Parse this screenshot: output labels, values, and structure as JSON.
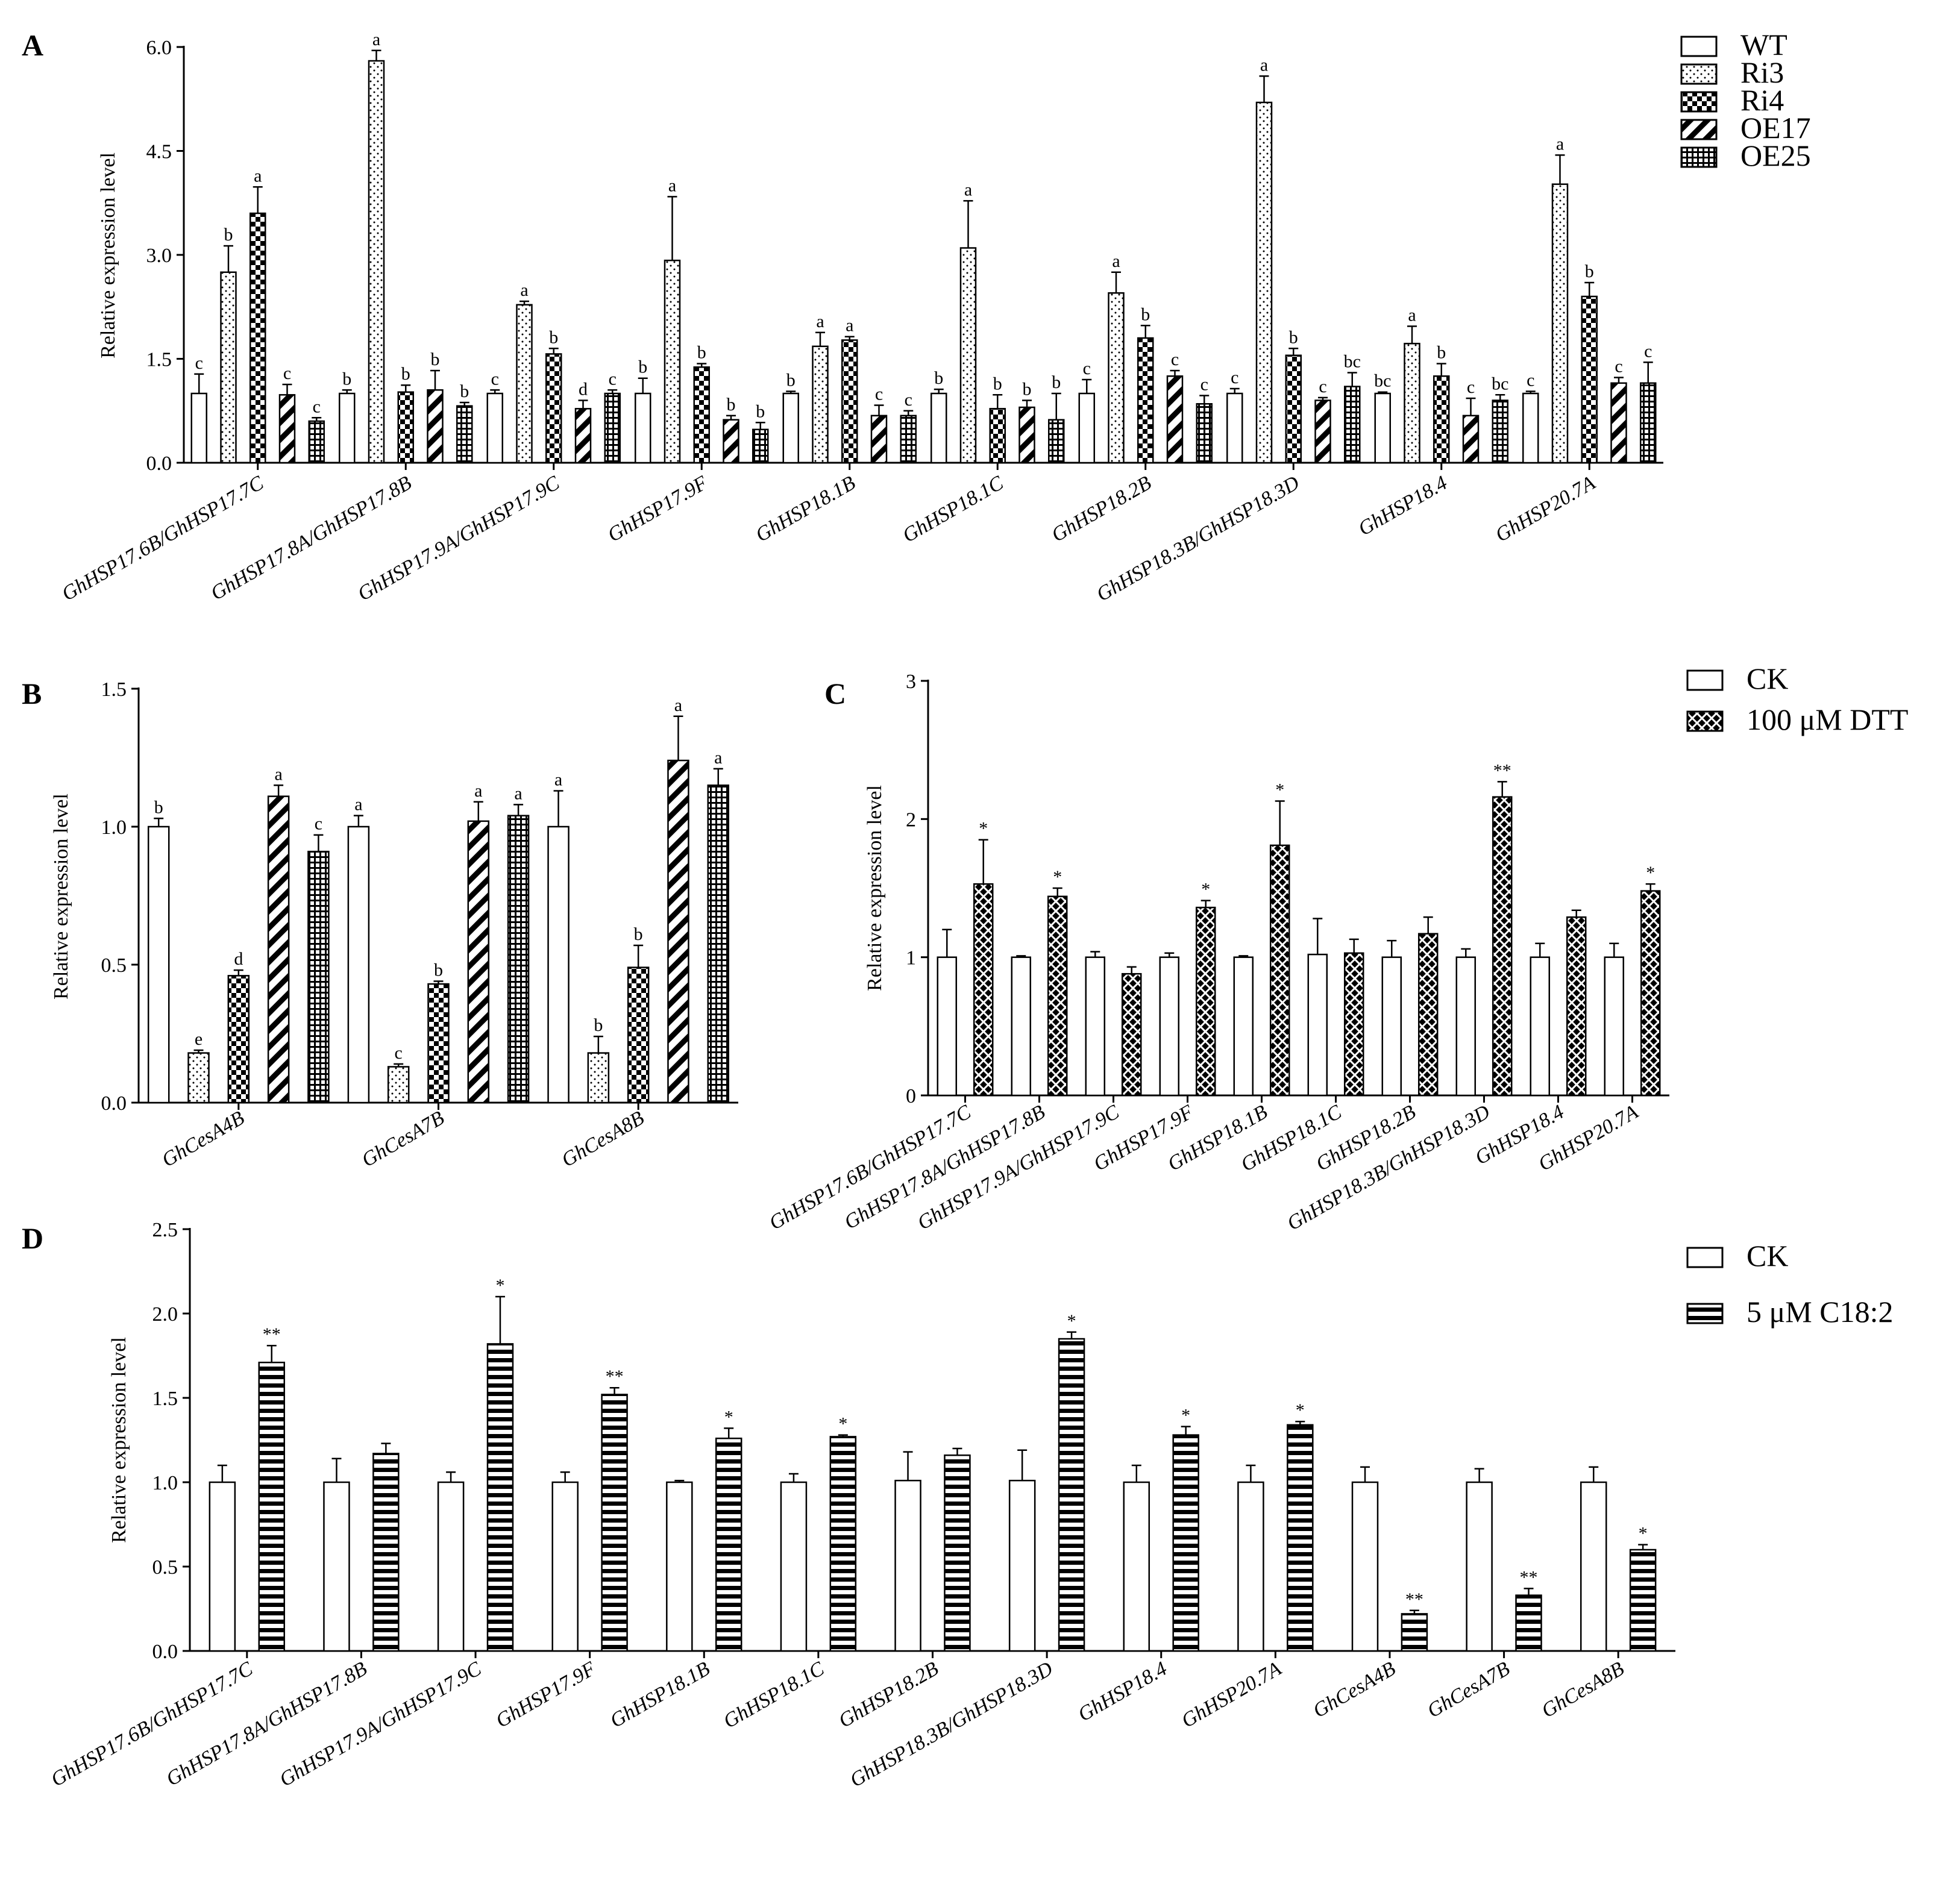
{
  "figure": {
    "panel_labels": [
      "A",
      "B",
      "C",
      "D"
    ],
    "colors": {
      "ink": "#000000",
      "bar_fill": "#ffffff"
    },
    "pattern_names": [
      "open",
      "dotted",
      "checker",
      "diagonal",
      "brick",
      "crosshatch",
      "horizontal-stripes"
    ]
  },
  "chart_data": [
    {
      "panel": "A",
      "type": "bar",
      "title": "",
      "xlabel": "",
      "ylabel": "Relative expression level",
      "ylim": [
        0,
        6.0
      ],
      "yticks": [
        "0.0",
        "1.5",
        "3.0",
        "4.5",
        "6.0"
      ],
      "categories": [
        "GhHSP17.6B/GhHSP17.7C",
        "GhHSP17.8A/GhHSP17.8B",
        "GhHSP17.9A/GhHSP17.9C",
        "GhHSP17.9F",
        "GhHSP18.1B",
        "GhHSP18.1C",
        "GhHSP18.2B",
        "GhHSP18.3B/GhHSP18.3D",
        "GhHSP18.4",
        "GhHSP20.7A"
      ],
      "legend_position": "top-right",
      "series": [
        {
          "name": "WT",
          "pattern": "open",
          "values": [
            1.0,
            1.0,
            1.0,
            1.0,
            1.0,
            1.0,
            1.0,
            1.0,
            1.0,
            1.0
          ],
          "errors": [
            0.28,
            0.05,
            0.05,
            0.22,
            0.03,
            0.06,
            0.2,
            0.07,
            0.02,
            0.03
          ],
          "labels": [
            "c",
            "b",
            "c",
            "b",
            "b",
            "b",
            "c",
            "c",
            "bc",
            "c"
          ]
        },
        {
          "name": "Ri3",
          "pattern": "dotted",
          "values": [
            2.75,
            5.8,
            2.28,
            2.92,
            1.68,
            3.1,
            2.45,
            5.2,
            1.72,
            4.02
          ],
          "errors": [
            0.38,
            0.15,
            0.05,
            0.92,
            0.2,
            0.68,
            0.3,
            0.38,
            0.25,
            0.42
          ],
          "labels": [
            "b",
            "a",
            "a",
            "a",
            "a",
            "a",
            "a",
            "a",
            "a",
            "a"
          ]
        },
        {
          "name": "Ri4",
          "pattern": "checker",
          "values": [
            3.6,
            1.02,
            1.57,
            1.38,
            1.77,
            0.78,
            1.8,
            1.55,
            1.25,
            2.4
          ],
          "errors": [
            0.38,
            0.1,
            0.08,
            0.05,
            0.05,
            0.2,
            0.18,
            0.1,
            0.18,
            0.2
          ],
          "labels": [
            "a",
            "b",
            "b",
            "b",
            "a",
            "b",
            "b",
            "b",
            "b",
            "b"
          ]
        },
        {
          "name": "OE17",
          "pattern": "diagonal",
          "values": [
            0.98,
            1.05,
            0.78,
            0.62,
            0.68,
            0.8,
            1.25,
            0.9,
            0.68,
            1.15
          ],
          "errors": [
            0.15,
            0.28,
            0.12,
            0.06,
            0.15,
            0.1,
            0.08,
            0.04,
            0.25,
            0.08
          ],
          "labels": [
            "c",
            "b",
            "d",
            "b",
            "c",
            "b",
            "c",
            "c",
            "c",
            "c"
          ]
        },
        {
          "name": "OE25",
          "pattern": "brick",
          "values": [
            0.6,
            0.82,
            1.0,
            0.48,
            0.68,
            0.62,
            0.85,
            1.1,
            0.9,
            1.15
          ],
          "errors": [
            0.05,
            0.05,
            0.05,
            0.1,
            0.07,
            0.38,
            0.12,
            0.2,
            0.08,
            0.3
          ],
          "labels": [
            "c",
            "b",
            "c",
            "b",
            "c",
            "b",
            "c",
            "bc",
            "bc",
            "c"
          ]
        }
      ]
    },
    {
      "panel": "B",
      "type": "bar",
      "title": "",
      "xlabel": "",
      "ylabel": "Relative expression level",
      "ylim": [
        0,
        1.5
      ],
      "yticks": [
        "0.0",
        "0.5",
        "1.0",
        "1.5"
      ],
      "categories": [
        "GhCesA4B",
        "GhCesA7B",
        "GhCesA8B"
      ],
      "legend_position": "shared with panel A",
      "series": [
        {
          "name": "WT",
          "pattern": "open",
          "values": [
            1.0,
            1.0,
            1.0
          ],
          "errors": [
            0.03,
            0.04,
            0.13
          ],
          "labels": [
            "b",
            "a",
            "a"
          ]
        },
        {
          "name": "Ri3",
          "pattern": "dotted",
          "values": [
            0.18,
            0.13,
            0.18
          ],
          "errors": [
            0.01,
            0.01,
            0.06
          ],
          "labels": [
            "e",
            "c",
            "b"
          ]
        },
        {
          "name": "Ri4",
          "pattern": "checker",
          "values": [
            0.46,
            0.43,
            0.49
          ],
          "errors": [
            0.02,
            0.01,
            0.08
          ],
          "labels": [
            "d",
            "b",
            "b"
          ]
        },
        {
          "name": "OE17",
          "pattern": "diagonal",
          "values": [
            1.11,
            1.02,
            1.24
          ],
          "errors": [
            0.04,
            0.07,
            0.16
          ],
          "labels": [
            "a",
            "a",
            "a"
          ]
        },
        {
          "name": "OE25",
          "pattern": "brick",
          "values": [
            0.91,
            1.04,
            1.15
          ],
          "errors": [
            0.06,
            0.04,
            0.06
          ],
          "labels": [
            "c",
            "a",
            "a"
          ]
        }
      ]
    },
    {
      "panel": "C",
      "type": "bar",
      "title": "",
      "xlabel": "",
      "ylabel": "Relative expression level",
      "ylim": [
        0,
        3
      ],
      "yticks": [
        "0",
        "1",
        "2",
        "3"
      ],
      "categories": [
        "GhHSP17.6B/GhHSP17.7C",
        "GhHSP17.8A/GhHSP17.8B",
        "GhHSP17.9A/GhHSP17.9C",
        "GhHSP17.9F",
        "GhHSP18.1B",
        "GhHSP18.1C",
        "GhHSP18.2B",
        "GhHSP18.3B/GhHSP18.3D",
        "GhHSP18.4",
        "GhHSP20.7A"
      ],
      "legend_position": "top-right",
      "series": [
        {
          "name": "CK",
          "pattern": "open",
          "values": [
            1.0,
            1.0,
            1.0,
            1.0,
            1.0,
            1.02,
            1.0,
            1.0,
            1.0,
            1.0
          ],
          "errors": [
            0.2,
            0.01,
            0.04,
            0.03,
            0.01,
            0.26,
            0.12,
            0.06,
            0.1,
            0.1
          ],
          "labels": [
            "",
            "",
            "",
            "",
            "",
            "",
            "",
            "",
            "",
            ""
          ]
        },
        {
          "name": "100 μM DTT",
          "pattern": "crosshatch",
          "values": [
            1.53,
            1.44,
            0.88,
            1.36,
            1.81,
            1.03,
            1.17,
            2.16,
            1.29,
            1.48
          ],
          "errors": [
            0.32,
            0.06,
            0.05,
            0.05,
            0.32,
            0.1,
            0.12,
            0.11,
            0.05,
            0.05
          ],
          "labels": [
            "*",
            "*",
            "",
            "*",
            "*",
            "",
            "",
            "**",
            "",
            "*"
          ]
        }
      ]
    },
    {
      "panel": "D",
      "type": "bar",
      "title": "",
      "xlabel": "",
      "ylabel": "Relative expression level",
      "ylim": [
        0,
        2.5
      ],
      "yticks": [
        "0.0",
        "0.5",
        "1.0",
        "1.5",
        "2.0",
        "2.5"
      ],
      "categories": [
        "GhHSP17.6B/GhHSP17.7C",
        "GhHSP17.8A/GhHSP17.8B",
        "GhHSP17.9A/GhHSP17.9C",
        "GhHSP17.9F",
        "GhHSP18.1B",
        "GhHSP18.1C",
        "GhHSP18.2B",
        "GhHSP18.3B/GhHSP18.3D",
        "GhHSP18.4",
        "GhHSP20.7A",
        "GhCesA4B",
        "GhCesA7B",
        "GhCesA8B"
      ],
      "legend_position": "top-right",
      "series": [
        {
          "name": "CK",
          "pattern": "open",
          "values": [
            1.0,
            1.0,
            1.0,
            1.0,
            1.0,
            1.0,
            1.01,
            1.01,
            1.0,
            1.0,
            1.0,
            1.0,
            1.0
          ],
          "errors": [
            0.1,
            0.14,
            0.06,
            0.06,
            0.01,
            0.05,
            0.17,
            0.18,
            0.1,
            0.1,
            0.09,
            0.08,
            0.09
          ],
          "labels": [
            "",
            "",
            "",
            "",
            "",
            "",
            "",
            "",
            "",
            "",
            "",
            "",
            ""
          ]
        },
        {
          "name": "5 μM C18:2",
          "pattern": "horizontal-stripes",
          "values": [
            1.71,
            1.17,
            1.82,
            1.52,
            1.26,
            1.27,
            1.16,
            1.85,
            1.28,
            1.34,
            0.22,
            0.33,
            0.6
          ],
          "errors": [
            0.1,
            0.06,
            0.28,
            0.04,
            0.06,
            0.01,
            0.04,
            0.04,
            0.05,
            0.02,
            0.02,
            0.04,
            0.03
          ],
          "labels": [
            "**",
            "",
            "*",
            "**",
            "*",
            "*",
            "",
            "*",
            "*",
            "*",
            "**",
            "**",
            "*"
          ]
        }
      ]
    }
  ]
}
